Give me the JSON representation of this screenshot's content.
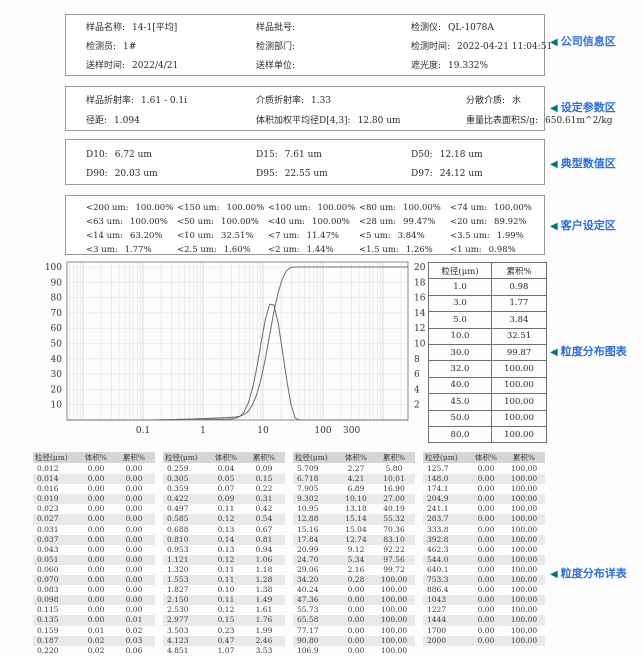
{
  "colors": {
    "label_blue": "#2e6fd6",
    "triangle_teal": "#00767c",
    "curve_gray": "#6a6a6a",
    "grid_minor": "#e0e0e0",
    "grid_major": "#c8c8c8",
    "stripe_gray": "#e9e9e9",
    "header_gray": "#d6d6d6",
    "box_border": "#9a9a9a"
  },
  "icons": {
    "section_marker": "left-triangle-icon",
    "glyph": "◀"
  },
  "section_labels": {
    "company": "公司信息区",
    "settings": "设定参数区",
    "typical": "典型数值区",
    "customer": "客户设定区",
    "chart": "粒度分布图表",
    "detail": "粒度分布详表"
  },
  "info_boxes": {
    "company": {
      "rows": [
        [
          [
            "样品名称:",
            "14-1[平均]"
          ],
          [
            "样品批号:",
            ""
          ],
          [
            "检测仪:",
            "QL-1078A"
          ]
        ],
        [
          [
            "检测员:",
            "1#"
          ],
          [
            "检测部门:",
            ""
          ],
          [
            "检测时间:",
            "2022-04-21 11:04:51"
          ]
        ],
        [
          [
            "送样时间:",
            "2022/4/21"
          ],
          [
            "送样单位:",
            ""
          ],
          [
            "遮光度:",
            "19.332%"
          ]
        ]
      ]
    },
    "settings": {
      "rows": [
        [
          [
            "样品折射率:",
            "1.61 - 0.1i"
          ],
          [
            "介质折射率:",
            "1.33"
          ],
          [
            "分散介质:",
            "水"
          ]
        ],
        [
          [
            "径距:",
            "1.094"
          ],
          [
            "体积加权平均径D[4,3]:",
            "12.80 um"
          ],
          [
            "重量比表面积S/g:",
            "650.61m^2/kg"
          ]
        ]
      ]
    },
    "typical": {
      "rows": [
        [
          [
            "D10:",
            "6.72 um"
          ],
          [
            "D15:",
            "7.61 um"
          ],
          [
            "D50:",
            "12.18 um"
          ]
        ],
        [
          [
            "D90:",
            "20.03 um"
          ],
          [
            "D95:",
            "22.55 um"
          ],
          [
            "D97:",
            "24.12 um"
          ]
        ]
      ]
    },
    "customer": {
      "rows": [
        [
          [
            "<200 um:",
            "100.00%"
          ],
          [
            "<150 um:",
            "100.00%"
          ],
          [
            "<100 um:",
            "100.00%"
          ],
          [
            "<80 um:",
            "100.00%"
          ],
          [
            "<74 um:",
            "100.00%"
          ]
        ],
        [
          [
            "<63 um:",
            "100.00%"
          ],
          [
            "<50 um:",
            "100.00%"
          ],
          [
            "<40 um:",
            "100.00%"
          ],
          [
            "<28 um:",
            "99.47%"
          ],
          [
            "<20 um:",
            "89.92%"
          ]
        ],
        [
          [
            "<14 um:",
            "63.20%"
          ],
          [
            "<10 um:",
            "32.51%"
          ],
          [
            "<7 um:",
            "11.47%"
          ],
          [
            "<5 um:",
            "3.84%"
          ],
          [
            "<3.5 um:",
            "1.99%"
          ]
        ],
        [
          [
            "<3 um:",
            "1.77%"
          ],
          [
            "<2.5 um:",
            "1.60%"
          ],
          [
            "<2 um:",
            "1.44%"
          ],
          [
            "<1.5 um:",
            "1.26%"
          ],
          [
            "<1 um:",
            "0.98%"
          ]
        ]
      ]
    }
  },
  "cumulative_table": {
    "headers": [
      "粒径(μm)",
      "累积%"
    ],
    "rows": [
      [
        "1.0",
        "0.98"
      ],
      [
        "3.0",
        "1.77"
      ],
      [
        "5.0",
        "3.84"
      ],
      [
        "10.0",
        "32.51"
      ],
      [
        "30.0",
        "99.87"
      ],
      [
        "32.0",
        "100.00"
      ],
      [
        "40.0",
        "100.00"
      ],
      [
        "45.0",
        "100.00"
      ],
      [
        "50.0",
        "100.00"
      ],
      [
        "80.0",
        "100.00"
      ]
    ]
  },
  "detail_table": {
    "headers": [
      "粒径(μm)",
      "体积%",
      "累积%"
    ],
    "groups": [
      [
        [
          "0.012",
          "0.00",
          "0.00"
        ],
        [
          "0.014",
          "0.00",
          "0.00"
        ],
        [
          "0.016",
          "0.00",
          "0.00"
        ],
        [
          "0.019",
          "0.00",
          "0.00"
        ],
        [
          "0.023",
          "0.00",
          "0.00"
        ],
        [
          "0.027",
          "0.00",
          "0.00"
        ],
        [
          "0.031",
          "0.00",
          "0.00"
        ],
        [
          "0.037",
          "0.00",
          "0.00"
        ],
        [
          "0.043",
          "0.00",
          "0.00"
        ],
        [
          "0.051",
          "0.00",
          "0.00"
        ],
        [
          "0.060",
          "0.00",
          "0.00"
        ],
        [
          "0.070",
          "0.00",
          "0.00"
        ],
        [
          "0.083",
          "0.00",
          "0.00"
        ],
        [
          "0.098",
          "0.00",
          "0.00"
        ],
        [
          "0.115",
          "0.00",
          "0.00"
        ],
        [
          "0.135",
          "0.00",
          "0.01"
        ],
        [
          "0.159",
          "0.01",
          "0.02"
        ],
        [
          "0.187",
          "0.02",
          "0.03"
        ],
        [
          "0.220",
          "0.02",
          "0.06"
        ]
      ],
      [
        [
          "0.259",
          "0.04",
          "0.09"
        ],
        [
          "0.305",
          "0.05",
          "0.15"
        ],
        [
          "0.359",
          "0.07",
          "0.22"
        ],
        [
          "0.422",
          "0.09",
          "0.31"
        ],
        [
          "0.497",
          "0.11",
          "0.42"
        ],
        [
          "0.585",
          "0.12",
          "0.54"
        ],
        [
          "0.688",
          "0.13",
          "0.67"
        ],
        [
          "0.810",
          "0.14",
          "0.81"
        ],
        [
          "0.953",
          "0.13",
          "0.94"
        ],
        [
          "1.121",
          "0.12",
          "1.06"
        ],
        [
          "1.320",
          "0.11",
          "1.18"
        ],
        [
          "1.553",
          "0.11",
          "1.28"
        ],
        [
          "1.827",
          "0.10",
          "1.38"
        ],
        [
          "2.150",
          "0.11",
          "1.49"
        ],
        [
          "2.530",
          "0.12",
          "1.61"
        ],
        [
          "2.977",
          "0.15",
          "1.76"
        ],
        [
          "3.503",
          "0.23",
          "1.99"
        ],
        [
          "4.123",
          "0.47",
          "2.46"
        ],
        [
          "4.851",
          "1.07",
          "3.53"
        ]
      ],
      [
        [
          "5.709",
          "2.27",
          "5.80"
        ],
        [
          "6.718",
          "4.21",
          "10.01"
        ],
        [
          "7.905",
          "6.89",
          "16.90"
        ],
        [
          "9.302",
          "10.10",
          "27.00"
        ],
        [
          "10.95",
          "13.18",
          "40.19"
        ],
        [
          "12.88",
          "15.14",
          "55.32"
        ],
        [
          "15.16",
          "15.04",
          "70.36"
        ],
        [
          "17.84",
          "12.74",
          "83.10"
        ],
        [
          "20.99",
          "9.12",
          "92.22"
        ],
        [
          "24.70",
          "5.34",
          "97.56"
        ],
        [
          "29.06",
          "2.16",
          "99.72"
        ],
        [
          "34.20",
          "0.28",
          "100.00"
        ],
        [
          "40.24",
          "0.00",
          "100.00"
        ],
        [
          "47.36",
          "0.00",
          "100.00"
        ],
        [
          "55.73",
          "0.00",
          "100.00"
        ],
        [
          "65.58",
          "0.00",
          "100.00"
        ],
        [
          "77.17",
          "0.00",
          "100.00"
        ],
        [
          "90.80",
          "0.00",
          "100.00"
        ],
        [
          "106.9",
          "0.00",
          "100.00"
        ]
      ],
      [
        [
          "125.7",
          "0.00",
          "100.00"
        ],
        [
          "148.0",
          "0.00",
          "100.00"
        ],
        [
          "174.1",
          "0.00",
          "100.00"
        ],
        [
          "204.9",
          "0.00",
          "100.00"
        ],
        [
          "241.1",
          "0.00",
          "100.00"
        ],
        [
          "283.7",
          "0.00",
          "100.00"
        ],
        [
          "333.8",
          "0.00",
          "100.00"
        ],
        [
          "392.8",
          "0.00",
          "100.00"
        ],
        [
          "462.3",
          "0.00",
          "100.00"
        ],
        [
          "544.0",
          "0.00",
          "100.00"
        ],
        [
          "640.1",
          "0.00",
          "100.00"
        ],
        [
          "753.3",
          "0.00",
          "100.00"
        ],
        [
          "886.4",
          "0.00",
          "100.00"
        ],
        [
          "1043",
          "0.00",
          "100.00"
        ],
        [
          "1227",
          "0.00",
          "100.00"
        ],
        [
          "1444",
          "0.00",
          "100.00"
        ],
        [
          "1700",
          "0.00",
          "100.00"
        ],
        [
          "2000",
          "0.00",
          "100.00"
        ],
        [
          "",
          "",
          ""
        ]
      ]
    ]
  },
  "chart_data": {
    "type": "line",
    "xscale": "log",
    "grid": true,
    "xlabel": "",
    "ylabel_left": "累积%",
    "ylabel_right": "体积%",
    "x_ticks": [
      0.1,
      1,
      10,
      100,
      300
    ],
    "left_ylim": [
      0,
      100
    ],
    "right_ylim": [
      0,
      20
    ],
    "left_yticks": [
      100,
      90,
      80,
      70,
      60,
      50,
      40,
      30,
      20,
      10
    ],
    "right_yticks": [
      20,
      18,
      16,
      14,
      12,
      10,
      8,
      6,
      4,
      2
    ],
    "x_sizes_um": [
      0.012,
      0.014,
      0.016,
      0.019,
      0.023,
      0.027,
      0.031,
      0.037,
      0.043,
      0.051,
      0.06,
      0.07,
      0.083,
      0.098,
      0.115,
      0.135,
      0.159,
      0.187,
      0.22,
      0.259,
      0.305,
      0.359,
      0.422,
      0.497,
      0.585,
      0.688,
      0.81,
      0.953,
      1.121,
      1.32,
      1.553,
      1.827,
      2.15,
      2.53,
      2.977,
      3.503,
      4.123,
      4.851,
      5.709,
      6.718,
      7.905,
      9.302,
      10.95,
      12.88,
      15.16,
      17.84,
      20.99,
      24.7,
      29.06,
      34.2,
      40.24,
      47.36,
      55.73,
      65.58,
      77.17,
      90.8,
      106.9,
      125.7,
      148.0,
      174.1,
      204.9,
      241.1,
      283.7,
      333.8,
      392.8,
      462.3,
      544.0,
      640.1,
      753.3,
      886.4,
      1043,
      1227,
      1444,
      1700,
      2000
    ],
    "series": [
      {
        "name": "体积%",
        "axis": "right",
        "values": [
          0,
          0,
          0,
          0,
          0,
          0,
          0,
          0,
          0,
          0,
          0,
          0,
          0,
          0,
          0,
          0,
          0.01,
          0.02,
          0.02,
          0.04,
          0.05,
          0.07,
          0.09,
          0.11,
          0.12,
          0.13,
          0.14,
          0.13,
          0.12,
          0.11,
          0.11,
          0.1,
          0.11,
          0.12,
          0.15,
          0.23,
          0.47,
          1.07,
          2.27,
          4.21,
          6.89,
          10.1,
          13.18,
          15.14,
          15.04,
          12.74,
          9.12,
          5.34,
          2.16,
          0.28,
          0,
          0,
          0,
          0,
          0,
          0,
          0,
          0,
          0,
          0,
          0,
          0,
          0,
          0,
          0,
          0,
          0,
          0,
          0,
          0,
          0,
          0,
          0,
          0,
          0
        ]
      },
      {
        "name": "累积%",
        "axis": "left",
        "values": [
          0,
          0,
          0,
          0,
          0,
          0,
          0,
          0,
          0,
          0,
          0,
          0,
          0,
          0,
          0,
          0.01,
          0.02,
          0.03,
          0.06,
          0.09,
          0.15,
          0.22,
          0.31,
          0.42,
          0.54,
          0.67,
          0.81,
          0.94,
          1.06,
          1.18,
          1.28,
          1.38,
          1.49,
          1.61,
          1.76,
          1.99,
          2.46,
          3.53,
          5.8,
          10.01,
          16.9,
          27.0,
          40.19,
          55.32,
          70.36,
          83.1,
          92.22,
          97.56,
          99.72,
          100,
          100,
          100,
          100,
          100,
          100,
          100,
          100,
          100,
          100,
          100,
          100,
          100,
          100,
          100,
          100,
          100,
          100,
          100,
          100,
          100,
          100,
          100,
          100,
          100,
          100
        ]
      }
    ]
  }
}
